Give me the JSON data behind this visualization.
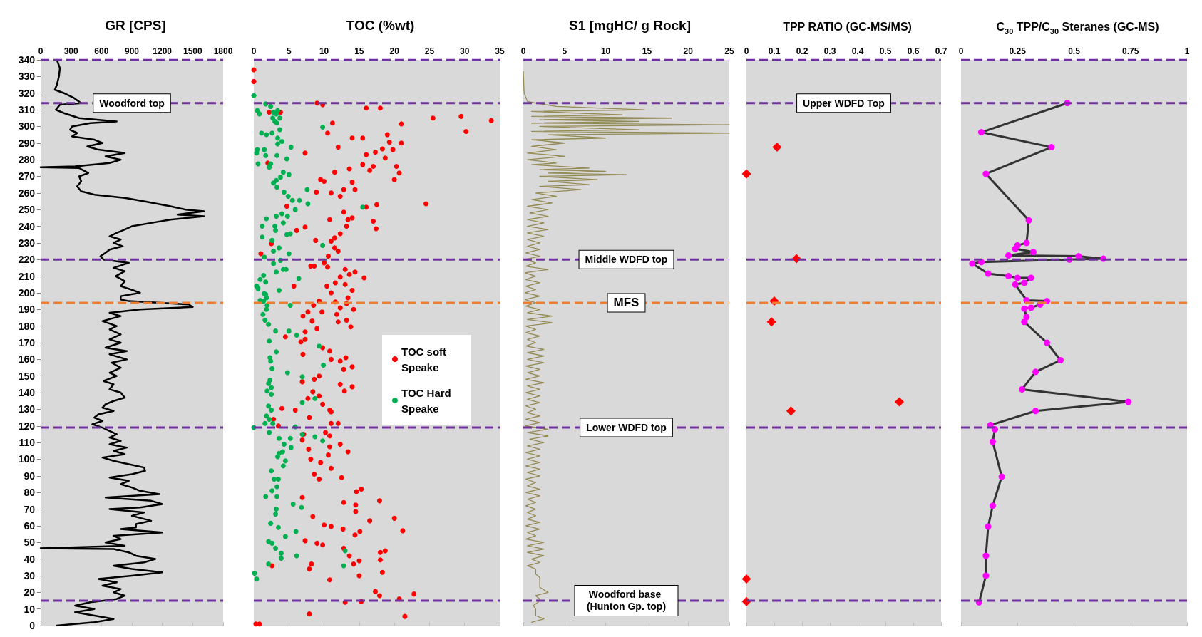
{
  "chart_data": [
    {
      "type": "line",
      "title": "GR [CPS]",
      "xlim": [
        0,
        1800
      ],
      "xticks": [
        0,
        300,
        600,
        900,
        1200,
        1500,
        1800
      ],
      "ylim": [
        0,
        340
      ],
      "yticks": [
        0,
        10,
        20,
        30,
        40,
        50,
        60,
        70,
        80,
        90,
        100,
        110,
        120,
        130,
        140,
        150,
        160,
        170,
        180,
        190,
        200,
        210,
        220,
        230,
        240,
        250,
        260,
        270,
        280,
        290,
        300,
        310,
        320,
        330,
        340
      ],
      "grid": false,
      "legend": false,
      "marker": "none",
      "line_style": "solid",
      "series": [
        {
          "color": "#000000",
          "x": [
            160,
            190,
            180,
            160,
            140,
            230,
            330,
            400,
            190,
            150,
            230,
            380,
            750,
            490,
            310,
            290,
            360,
            310,
            530,
            610,
            460,
            570,
            830,
            640,
            790,
            680,
            340,
            0,
            380,
            470,
            380,
            400,
            360,
            400,
            530,
            830,
            1020,
            1280,
            1430,
            1610,
            1350,
            1610,
            1280,
            1090,
            900,
            830,
            750,
            680,
            790,
            720,
            810,
            680,
            640,
            590,
            620,
            870,
            720,
            830,
            740,
            830,
            790,
            890,
            980,
            790,
            790,
            870,
            1460,
            1500,
            980,
            680,
            790,
            610,
            750,
            680,
            790,
            680,
            790,
            640,
            850,
            680,
            850,
            700,
            790,
            680,
            750,
            620,
            720,
            680,
            790,
            830,
            720,
            640,
            610,
            720,
            570,
            530,
            610,
            510,
            610,
            680,
            750,
            680,
            790,
            680,
            850,
            720,
            830,
            610,
            720,
            870,
            1020,
            1030,
            900,
            680,
            870,
            790,
            900,
            980,
            1170,
            640,
            1090,
            1200,
            980,
            680,
            1020,
            900,
            1090,
            940,
            940,
            790,
            1200,
            720,
            790,
            640,
            830,
            0,
            720,
            870,
            940,
            1130,
            1020,
            720,
            900,
            1200,
            900,
            570,
            750,
            610,
            790,
            720,
            830,
            750,
            490,
            340,
            530,
            340,
            530,
            720,
            530,
            160
          ],
          "values": [
            340,
            335,
            330,
            325,
            322,
            320,
            317,
            314,
            313,
            310,
            308,
            305,
            303,
            302,
            300,
            298,
            296,
            294,
            292,
            290,
            288,
            286,
            284,
            282,
            280,
            278,
            276,
            275.5,
            275,
            272,
            270,
            267,
            264,
            261,
            259,
            257,
            255,
            252,
            250,
            249,
            247,
            246,
            244,
            242,
            240,
            238,
            236,
            234,
            232,
            230,
            228,
            226,
            224,
            222,
            220,
            218,
            215,
            213,
            210,
            207,
            204,
            202,
            200,
            198,
            196,
            195,
            193,
            191.5,
            190,
            188,
            186,
            183,
            180,
            178,
            175,
            172,
            170,
            167,
            165,
            163,
            160,
            158,
            155,
            152,
            150,
            147,
            145,
            142,
            140,
            137,
            135,
            133,
            131,
            129,
            127,
            125,
            123,
            121,
            119,
            117,
            115,
            113,
            111,
            109,
            107,
            105,
            103,
            101,
            99,
            97,
            95,
            93,
            91,
            89,
            87,
            85,
            83,
            81,
            79,
            77,
            75,
            73,
            71,
            70,
            68,
            66,
            63,
            61,
            59,
            58,
            56,
            54,
            52,
            50,
            48,
            46.5,
            46,
            44,
            42,
            40,
            38,
            36,
            34,
            32,
            30,
            28,
            26,
            24,
            22,
            20,
            18,
            16,
            14,
            12,
            10,
            8,
            6,
            4,
            2,
            0
          ]
        }
      ],
      "ref_lines": [
        {
          "axis": "y",
          "value": 340,
          "color": "#7030a0",
          "line_style": "dashed"
        },
        {
          "axis": "y",
          "value": 314,
          "label": "Woodford top",
          "color": "#7030a0",
          "line_style": "dashed"
        },
        {
          "axis": "y",
          "value": 220,
          "color": "#7030a0",
          "line_style": "dashed"
        },
        {
          "axis": "y",
          "value": 194,
          "color": "#ed7d31",
          "line_style": "dashed"
        },
        {
          "axis": "y",
          "value": 119,
          "color": "#7030a0",
          "line_style": "dashed"
        },
        {
          "axis": "y",
          "value": 15,
          "color": "#7030a0",
          "line_style": "dashed"
        }
      ]
    },
    {
      "type": "scatter",
      "title": "TOC (%wt)",
      "xlim": [
        0,
        35
      ],
      "xticks": [
        0,
        5,
        10,
        15,
        20,
        25,
        30,
        35
      ],
      "ylim": [
        0,
        340
      ],
      "tick_labels": "x",
      "grid": false,
      "legend": "right",
      "marker": "circle",
      "series": [
        {
          "name": "TOC soft Speake",
          "color": "#ff0000",
          "x": [
            0,
            0,
            9,
            9.8,
            16,
            18,
            2.2,
            3.8,
            25.5,
            29.5,
            33.8,
            11.2,
            21,
            30.2,
            10.5,
            14,
            15.5,
            19,
            19.3,
            21,
            12,
            17.3,
            18.3,
            7.3,
            16,
            19.8,
            2,
            18.7,
            15.5,
            13.6,
            17,
            20.3,
            16.5,
            20.7,
            11.5,
            9.5,
            14,
            20,
            10,
            14.4,
            8.9,
            11,
            12.3,
            12.8,
            4.7,
            24.5,
            16,
            17.5,
            12.8,
            14,
            13.4,
            10.8,
            17,
            17.4,
            6.1,
            7.3,
            13.2,
            12.3,
            11.5,
            8.8,
            11,
            2.5,
            11.5,
            12,
            1,
            10.6,
            8.1,
            10,
            10.5,
            8.6,
            13,
            14.4,
            13.6,
            15.7,
            12.3,
            11.6,
            13,
            10.4,
            14,
            5.7,
            11,
            13.4,
            9.3,
            11.6,
            13.2,
            8.5,
            12.3,
            14.2,
            7.7,
            9.7,
            11.8,
            7,
            8.3,
            12,
            13.2,
            9,
            13.8,
            7.3,
            4.5,
            6.7,
            7.3,
            9.8,
            7,
            10.8,
            13.1,
            11,
            12.3,
            14,
            12.8,
            9.3,
            6.9,
            8.6,
            12.3,
            14,
            12.9,
            8.4,
            7.7,
            9.3,
            9.8,
            10.8,
            5.9,
            4,
            7.9,
            11,
            2.8,
            11,
            12,
            3.5,
            10.2,
            7.1,
            10.8,
            6.9,
            12.3,
            13.4,
            10.8,
            7.8,
            8.1,
            10.6,
            9.5,
            11,
            8.6,
            12.5,
            9.3,
            15.3,
            14.6,
            12.8,
            17.9,
            6.9,
            14.5,
            14.5,
            16.5,
            8.4,
            11,
            10,
            12.7,
            15.1,
            9.8,
            20,
            21.2,
            7.3,
            9,
            14.4,
            18,
            18.7,
            12.8,
            13.6,
            15,
            14.2,
            8.2,
            18.3,
            18,
            15,
            7.9,
            2.6,
            10.8,
            17.3,
            17.9,
            20.7,
            22.8,
            15.3,
            13,
            21.5,
            7.9,
            0.3,
            0.8
          ],
          "values": [
            334,
            327,
            314,
            313,
            311,
            311,
            308.5,
            308.5,
            305,
            306,
            303.5,
            302,
            301.5,
            297,
            296,
            293,
            293,
            295,
            290.5,
            290,
            287.5,
            284.5,
            286.5,
            284,
            283,
            286,
            278,
            281,
            277,
            274.5,
            276,
            276,
            273.5,
            272,
            272.5,
            268,
            266.5,
            268,
            267,
            262,
            260.5,
            260,
            258,
            262,
            252,
            253.5,
            251.5,
            253,
            248.5,
            245,
            244,
            244,
            243,
            238.5,
            237.5,
            239.5,
            240,
            235.5,
            233,
            231.5,
            231,
            229.5,
            227,
            225,
            223.5,
            222,
            216,
            218,
            215.5,
            216,
            214,
            212.5,
            211,
            209,
            209.5,
            206,
            205,
            204,
            201.5,
            204,
            200,
            197,
            195,
            194.5,
            193.5,
            192.5,
            191,
            190,
            188.5,
            188.5,
            187,
            186,
            183,
            182.5,
            183.5,
            178.5,
            179.5,
            176.5,
            173.5,
            170.5,
            172,
            167,
            163,
            165,
            161,
            160,
            159,
            155.5,
            154,
            150,
            146.5,
            148,
            145,
            143.5,
            141,
            140.5,
            136.5,
            138,
            133,
            129.5,
            129.5,
            130.5,
            125,
            128.5,
            124,
            121.5,
            121.5,
            120,
            116,
            115,
            114,
            111.5,
            109,
            104.5,
            107.5,
            106,
            100,
            102.5,
            98,
            94.5,
            91,
            89,
            88,
            82,
            80.5,
            74,
            75,
            77,
            72.5,
            68.5,
            63,
            65.5,
            59.5,
            60.5,
            58,
            56.5,
            48.5,
            64.5,
            57,
            51,
            49.5,
            54.5,
            44,
            45,
            46.5,
            42,
            39,
            37,
            37,
            32,
            39.5,
            30,
            34,
            36,
            27.5,
            20.5,
            18,
            16,
            19,
            14.5,
            14,
            5.5,
            7,
            1,
            1
          ]
        },
        {
          "name": "TOC Hard Speake",
          "color": "#00b050",
          "x": [
            0,
            1.7,
            2.4,
            0.5,
            3.4,
            2.8,
            0.8,
            3.2,
            2.7,
            3.7,
            3,
            3.3,
            9.8,
            3.7,
            1.1,
            2.6,
            1.8,
            3.4,
            4,
            3.4,
            5.3,
            0.5,
            1.5,
            0.4,
            1.7,
            3.3,
            4.7,
            0.6,
            2.4,
            2.2,
            4.2,
            5,
            3.8,
            3.2,
            2.8,
            3.3,
            7.6,
            4.3,
            4.9,
            5.5,
            6.5,
            7.7,
            15.5,
            5.9,
            4,
            3.2,
            4.8,
            1.8,
            4.2,
            1.2,
            3,
            3.1,
            5.2,
            4.7,
            1.2,
            2.6,
            9.8,
            3.6,
            2.8,
            5,
            1.5,
            3.8,
            2.8,
            4.2,
            4.6,
            3.2,
            1.4,
            6.4,
            0.9,
            1.7,
            0.4,
            0.6,
            3.6,
            1.5,
            1.7,
            1.8,
            0.9,
            1.4,
            5.2,
            1.9,
            1.8,
            1.3,
            1.6,
            2.1,
            3.1,
            5,
            6.1,
            2.2,
            9.3,
            3.2,
            2.3,
            2.4,
            9.9,
            2.6,
            4.8,
            6.9,
            2.3,
            2.1,
            2.5,
            1.9,
            2.5,
            8.7,
            6.9,
            2.1,
            2.5,
            1.8,
            2.2,
            1.6,
            2.7,
            0,
            5.9,
            2.2,
            6.9,
            8.7,
            9.8,
            5.2,
            3.6,
            4.3,
            5.3,
            4.1,
            3.6,
            3.4,
            4.5,
            4.2,
            2.5,
            2.9,
            3.5,
            3.3,
            2.6,
            1.7,
            3.3,
            5.6,
            6.8,
            3.2,
            3.1,
            2.4,
            3.5,
            6,
            4.5,
            2.1,
            2.6,
            3.1,
            13,
            3.9,
            6.1,
            3.9,
            2.1,
            12.8,
            0.1,
            0.4
          ],
          "values": [
            318.5,
            313.5,
            312,
            309.5,
            309.5,
            308.5,
            307.5,
            307.5,
            305,
            305,
            303,
            302,
            299.5,
            298,
            296,
            296,
            295,
            293,
            291,
            289.5,
            287.5,
            286,
            286,
            284,
            282.5,
            282.5,
            280.5,
            277.5,
            277.5,
            275.5,
            272.5,
            271,
            269.5,
            267.5,
            266,
            263.5,
            262,
            260.5,
            258,
            255.5,
            255.5,
            253.5,
            251.5,
            250,
            247.5,
            246,
            246,
            244.5,
            242,
            240,
            240,
            237.5,
            235.5,
            235,
            233.5,
            231.5,
            228.5,
            227,
            225,
            223.5,
            221.5,
            219.5,
            217.5,
            214,
            214,
            212.5,
            210.5,
            208.5,
            208,
            206.5,
            204,
            202.5,
            201.5,
            199.5,
            199,
            197,
            195.5,
            195,
            192.5,
            192.5,
            190,
            187,
            183.5,
            181,
            177,
            177,
            174.5,
            171,
            168,
            164.5,
            161,
            159,
            156.5,
            154.5,
            152,
            149.5,
            147.5,
            145.5,
            143,
            141,
            139,
            136.5,
            134,
            132,
            129.5,
            126,
            124,
            121.5,
            121.5,
            119,
            119.5,
            116,
            115,
            113.5,
            111,
            112.5,
            112.5,
            109,
            107,
            104.5,
            103.5,
            101.5,
            99,
            96,
            93,
            88,
            88,
            83.5,
            81,
            77.5,
            77.5,
            73,
            71,
            70,
            67,
            61.5,
            59,
            56.5,
            53.5,
            50.5,
            49.5,
            46.5,
            45,
            43.5,
            42,
            40.5,
            37,
            36,
            31.5,
            28
          ]
        }
      ],
      "ref_lines": [
        {
          "axis": "y",
          "value": 340,
          "color": "#7030a0",
          "line_style": "dashed"
        },
        {
          "axis": "y",
          "value": 314,
          "color": "#7030a0",
          "line_style": "dashed"
        },
        {
          "axis": "y",
          "value": 220,
          "color": "#7030a0",
          "line_style": "dashed"
        },
        {
          "axis": "y",
          "value": 194,
          "color": "#ed7d31",
          "line_style": "dashed"
        },
        {
          "axis": "y",
          "value": 119,
          "color": "#7030a0",
          "line_style": "dashed"
        },
        {
          "axis": "y",
          "value": 15,
          "color": "#7030a0",
          "line_style": "dashed"
        }
      ]
    },
    {
      "type": "line",
      "title": "S1 [mgHC/ g Rock]",
      "xlim": [
        0,
        25
      ],
      "xticks": [
        0,
        5,
        10,
        15,
        20,
        25
      ],
      "ylim": [
        0,
        340
      ],
      "tick_labels": "x",
      "grid": false,
      "legend": false,
      "marker": "none",
      "line_style": "solid",
      "series": [
        {
          "color": "#948a54",
          "x": [
            0,
            0.1,
            0.5,
            1.5,
            4,
            14.7,
            1,
            12,
            1,
            18,
            2,
            14,
            1,
            25,
            2,
            14,
            1,
            25,
            3,
            10,
            1,
            5,
            1,
            4,
            0.5,
            5,
            0.5,
            4,
            1,
            8,
            2,
            10,
            3,
            12.5,
            2,
            9,
            3,
            8,
            2,
            7,
            1.5,
            4,
            1,
            3.5,
            0.5,
            3,
            0.8,
            3,
            0.5,
            2.5,
            0.5,
            3,
            0.5,
            2.5,
            0.5,
            2,
            0.5,
            2,
            0.3,
            2,
            0.2,
            1.5,
            0.3,
            3,
            0.2,
            1.5,
            0.3,
            2,
            0.3,
            1.5,
            0.2,
            2,
            0.2,
            1.5,
            0.3,
            2,
            0.5,
            3.5,
            0.5,
            3.5,
            0.3,
            1.5,
            0.3,
            2,
            0.5,
            1.5,
            0.3,
            2.5,
            0.5,
            2.5,
            0.5,
            2.5,
            0.3,
            2,
            0.5,
            2,
            0.3,
            2.5,
            0.5,
            2,
            0.3,
            2,
            0.5,
            2,
            0.3,
            1.5,
            0.5,
            2,
            0.3,
            2,
            0.2,
            3,
            0.5,
            3,
            0.8,
            2.5,
            0.5,
            2,
            0.3,
            2,
            0.5,
            2,
            0.3,
            2,
            0.5,
            2,
            0.3,
            1.5,
            0.5,
            2,
            0.3,
            2,
            0.5,
            1.5,
            0.3,
            1.5,
            0.5,
            1.5,
            0.5,
            2,
            0.3,
            2,
            0.5,
            1.5,
            0.3,
            2.5,
            0.5,
            2.5,
            0.5,
            2.5,
            1,
            2,
            0.5,
            1.5,
            1.5,
            2,
            2,
            2,
            3,
            1.5,
            2,
            1.8,
            1.2,
            1.5,
            1.5,
            2.5,
            1
          ],
          "values": [
            333,
            320,
            315,
            314,
            312,
            310,
            309,
            307,
            306,
            305,
            304,
            303,
            302,
            301,
            300,
            298,
            297,
            296,
            295,
            293,
            292,
            290,
            288,
            286,
            284,
            282,
            280,
            278,
            277,
            275,
            274,
            273,
            272,
            271,
            270,
            268,
            267,
            265,
            264,
            262,
            260,
            258,
            256,
            254,
            252,
            250,
            248,
            246,
            244,
            242,
            240,
            238,
            236,
            234,
            232,
            230,
            228,
            226,
            224,
            222,
            220,
            218,
            216,
            214,
            212,
            210,
            208,
            206,
            204,
            202,
            200,
            198,
            196,
            194,
            192,
            190,
            188,
            186,
            184,
            182,
            180,
            178,
            176,
            174,
            172,
            170,
            168,
            166,
            164,
            162,
            160,
            158,
            156,
            154,
            152,
            150,
            148,
            146,
            144,
            142,
            140,
            138,
            136,
            134,
            132,
            130,
            128,
            126,
            124,
            122,
            120,
            118,
            116,
            114,
            112,
            110,
            108,
            106,
            104,
            102,
            100,
            98,
            96,
            94,
            92,
            90,
            88,
            86,
            84,
            82,
            80,
            78,
            76,
            74,
            72,
            70,
            68,
            66,
            64,
            62,
            60,
            58,
            56,
            54,
            52,
            50,
            48,
            46,
            44,
            42,
            40,
            38,
            36,
            34,
            31,
            29,
            27,
            23,
            20,
            18,
            16,
            14,
            12,
            10,
            6,
            4,
            2
          ]
        }
      ],
      "ref_lines": [
        {
          "axis": "y",
          "value": 340,
          "color": "#7030a0",
          "line_style": "dashed"
        },
        {
          "axis": "y",
          "value": 314,
          "color": "#7030a0",
          "line_style": "dashed"
        },
        {
          "axis": "y",
          "value": 220,
          "label": "Middle WDFD top",
          "color": "#7030a0",
          "line_style": "dashed"
        },
        {
          "axis": "y",
          "value": 194,
          "label": "MFS",
          "color": "#ed7d31",
          "line_style": "dashed"
        },
        {
          "axis": "y",
          "value": 119,
          "label": "Lower WDFD top",
          "color": "#7030a0",
          "line_style": "dashed"
        },
        {
          "axis": "y",
          "value": 15,
          "label": "Woodford base (Hunton Gp. top)",
          "color": "#7030a0",
          "line_style": "dashed"
        }
      ]
    },
    {
      "type": "scatter",
      "title": "TPP RATIO (GC-MS/MS)",
      "xlim": [
        0,
        0.7
      ],
      "xticks": [
        0,
        0.1,
        0.2,
        0.3,
        0.4,
        0.5,
        0.6,
        0.7
      ],
      "ylim": [
        0,
        340
      ],
      "tick_labels": "x",
      "grid": false,
      "legend": false,
      "marker": "diamond",
      "series": [
        {
          "color": "#ff0000",
          "x": [
            0.11,
            0,
            0.18,
            0.1,
            0.09,
            0.55,
            0.16,
            0,
            0
          ],
          "values": [
            287.5,
            271.5,
            220.5,
            195,
            182.5,
            134.5,
            129,
            28,
            14.5
          ]
        }
      ],
      "ref_lines": [
        {
          "axis": "y",
          "value": 340,
          "color": "#7030a0",
          "line_style": "dashed"
        },
        {
          "axis": "y",
          "value": 314,
          "label": "Upper WDFD Top",
          "color": "#7030a0",
          "line_style": "dashed"
        },
        {
          "axis": "y",
          "value": 220,
          "color": "#7030a0",
          "line_style": "dashed"
        },
        {
          "axis": "y",
          "value": 194,
          "color": "#ed7d31",
          "line_style": "dashed"
        },
        {
          "axis": "y",
          "value": 119,
          "color": "#7030a0",
          "line_style": "dashed"
        },
        {
          "axis": "y",
          "value": 15,
          "color": "#7030a0",
          "line_style": "dashed"
        }
      ]
    },
    {
      "type": "line",
      "title": "C$_{30}$ TPP/C$_{30}$ Steranes (GC-MS)",
      "xlim": [
        0,
        1
      ],
      "xticks": [
        0,
        0.25,
        0.5,
        0.75,
        1
      ],
      "ylim": [
        0,
        340
      ],
      "tick_labels": "x",
      "grid": false,
      "legend": false,
      "marker": "circle",
      "line_style": "solid",
      "series": [
        {
          "color": "#333333",
          "colors": [
            "#ff00ff",
            "#ff00ff",
            "#ff00ff",
            "#ff00ff",
            "#ff00ff",
            "#ff00ff",
            "#ff00ff",
            "#ff00ff",
            "#ff00ff",
            "#ff00ff",
            "#ff00ff",
            "#ff00ff",
            "#ff00ff",
            "#ff00ff",
            "#ff00ff",
            "#ff00ff",
            "#ff00ff",
            "#ff00ff",
            "#ff00ff",
            "#ff00ff",
            "#ff00ff",
            "#ff00ff",
            "#ff00ff",
            "#ff00ff",
            "#ff00ff",
            "#ff00ff",
            "#ff00ff",
            "#ff00ff",
            "#ff00ff",
            "#ff00ff",
            "#ff00ff",
            "#ff00ff",
            "#ff00ff",
            "#ff00ff",
            "#ff00ff",
            "#ff00ff",
            "#ff00ff",
            "#ff00ff",
            "#ff00ff",
            "#ff00ff",
            "#ff00ff",
            "#ff00ff",
            "#ff00ff"
          ],
          "x": [
            0.47,
            0.09,
            0.4,
            0.11,
            0.3,
            0.29,
            0.25,
            0.24,
            0.32,
            0.21,
            0.52,
            0.63,
            0.48,
            0.09,
            0.05,
            0.12,
            0.21,
            0.25,
            0.31,
            0.28,
            0.24,
            0.29,
            0.38,
            0.35,
            0.31,
            0.28,
            0.29,
            0.28,
            0.38,
            0.44,
            0.33,
            0.27,
            0.74,
            0.33,
            0.13,
            0.15,
            0.14,
            0.18,
            0.14,
            0.12,
            0.11,
            0.11,
            0.08
          ],
          "values": [
            314,
            296.5,
            287.5,
            271.5,
            243.5,
            230,
            228.5,
            226.5,
            224.5,
            222.5,
            222,
            220.5,
            220,
            218.5,
            217.5,
            211.5,
            210,
            209,
            209,
            206,
            205,
            195.5,
            195,
            193,
            191,
            190.5,
            185.5,
            182.5,
            170,
            159.5,
            152.5,
            142,
            134.5,
            129,
            120.5,
            118,
            110.5,
            89.5,
            72,
            59.5,
            42,
            30,
            14
          ]
        }
      ],
      "ref_lines": [
        {
          "axis": "y",
          "value": 340,
          "color": "#7030a0",
          "line_style": "dashed"
        },
        {
          "axis": "y",
          "value": 314,
          "color": "#7030a0",
          "line_style": "dashed"
        },
        {
          "axis": "y",
          "value": 220,
          "color": "#7030a0",
          "line_style": "dashed"
        },
        {
          "axis": "y",
          "value": 194,
          "color": "#ed7d31",
          "line_style": "dashed"
        },
        {
          "axis": "y",
          "value": 119,
          "color": "#7030a0",
          "line_style": "dashed"
        },
        {
          "axis": "y",
          "value": 15,
          "color": "#7030a0",
          "line_style": "dashed"
        }
      ]
    }
  ]
}
